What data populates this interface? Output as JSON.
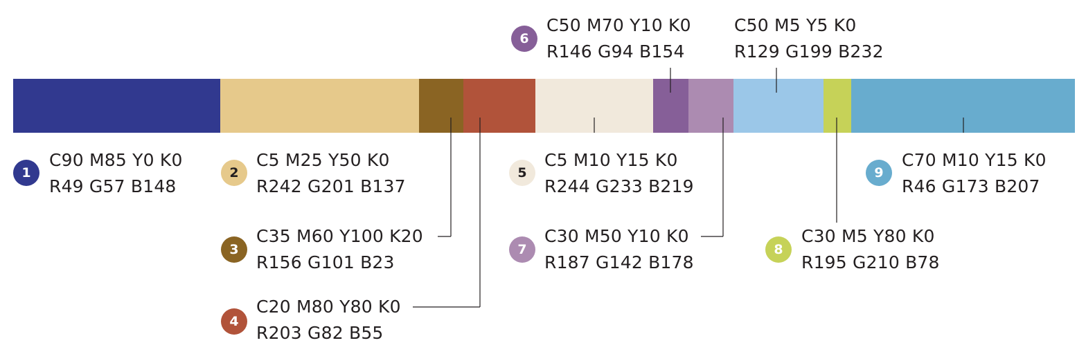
{
  "swatches": [
    {
      "id": "1",
      "color": "#31398f",
      "cmyk": "C90 M85 Y0 K0",
      "rgb": "R49 G57 B148"
    },
    {
      "id": "2",
      "color": "#e6c98b",
      "cmyk": "C5 M25 Y50 K0",
      "rgb": "R242 G201 B137"
    },
    {
      "id": "3",
      "color": "#8a6423",
      "cmyk": "C35 M60 Y100 K20",
      "rgb": "R156 G101 B23"
    },
    {
      "id": "4",
      "color": "#b1533a",
      "cmyk": "C20 M80 Y80 K0",
      "rgb": "R203 G82 B55"
    },
    {
      "id": "5",
      "color": "#f1e9dc",
      "cmyk": "C5 M10 Y15 K0",
      "rgb": "R244 G233 B219"
    },
    {
      "id": "6",
      "color": "#865f98",
      "cmyk": "C50 M70 Y10 K0",
      "rgb": "R146 G94 B154"
    },
    {
      "id": "7",
      "color": "#ac8bb1",
      "cmyk": "C30 M50 Y10 K0",
      "rgb": "R187 G142 B178"
    },
    {
      "id": "",
      "color": "#9bc7e8",
      "cmyk": "C50 M5 Y5 K0",
      "rgb": "R129 G199 B232"
    },
    {
      "id": "8",
      "color": "#c6d258",
      "cmyk": "C30 M5 Y80 K0",
      "rgb": "R195 G210 B78"
    },
    {
      "id": "9",
      "color": "#68acce",
      "cmyk": "C70 M10 Y15 K0",
      "rgb": "R46 G173 B207"
    }
  ]
}
